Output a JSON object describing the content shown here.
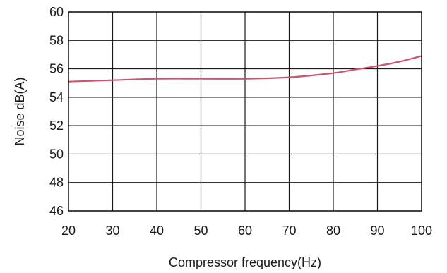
{
  "chart_data": {
    "type": "line",
    "title": "",
    "xlabel": "Compressor frequency(Hz)",
    "ylabel": "Noise dB(A)",
    "xlim": [
      20,
      100
    ],
    "ylim": [
      46,
      60
    ],
    "xticks": [
      20,
      30,
      40,
      50,
      60,
      70,
      80,
      90,
      100
    ],
    "yticks": [
      46,
      48,
      50,
      52,
      54,
      56,
      58,
      60
    ],
    "grid": true,
    "legend": "none",
    "line_color": "#c8566e",
    "series": [
      {
        "x": [
          20,
          30,
          40,
          50,
          60,
          70,
          80,
          85,
          90,
          95,
          100
        ],
        "values": [
          55.1,
          55.2,
          55.3,
          55.3,
          55.3,
          55.4,
          55.7,
          55.95,
          56.2,
          56.5,
          56.9
        ]
      }
    ]
  }
}
